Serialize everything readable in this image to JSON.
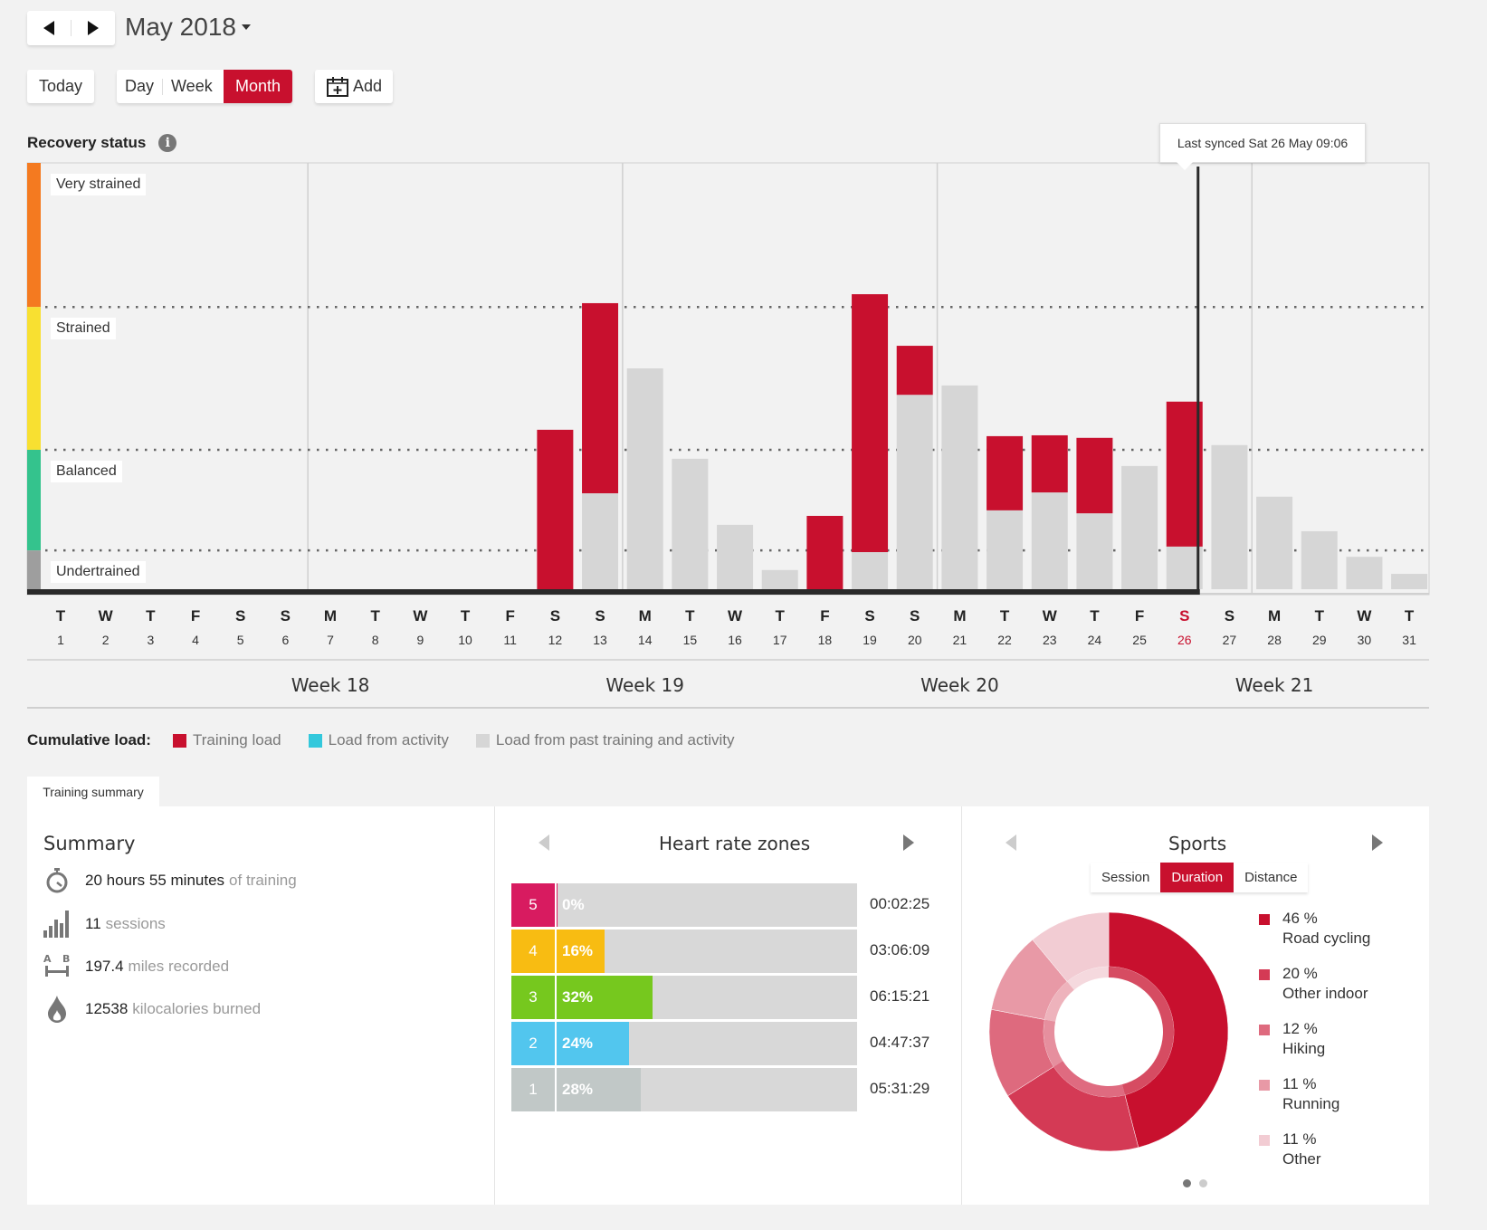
{
  "header": {
    "prev_label": "previous",
    "next_label": "next",
    "month_title": "May 2018",
    "today": "Today",
    "views": [
      "Day",
      "Week",
      "Month"
    ],
    "active_view": "Month",
    "add": "Add"
  },
  "recovery": {
    "title": "Recovery status",
    "tooltip": "Last synced Sat 26 May 09:06",
    "zones": [
      {
        "label": "Very strained",
        "color": "#f47a20"
      },
      {
        "label": "Strained",
        "color": "#f8e031"
      },
      {
        "label": "Balanced",
        "color": "#34c38d"
      },
      {
        "label": "Undertrained",
        "color": "#9e9e9e"
      }
    ]
  },
  "chart_data": {
    "type": "bar",
    "title": "Recovery status",
    "stacked": true,
    "ylim": [
      0,
      100
    ],
    "thresholds": {
      "undertrained_balanced": 9.1,
      "balanced_strained": 32.7,
      "strained_very_strained": 66.2
    },
    "categories": [
      "1",
      "2",
      "3",
      "4",
      "5",
      "6",
      "7",
      "8",
      "9",
      "10",
      "11",
      "12",
      "13",
      "14",
      "15",
      "16",
      "17",
      "18",
      "19",
      "20",
      "21",
      "22",
      "23",
      "24",
      "25",
      "26",
      "27",
      "28",
      "29",
      "30",
      "31"
    ],
    "weekdays": [
      "T",
      "W",
      "T",
      "F",
      "S",
      "S",
      "M",
      "T",
      "W",
      "T",
      "F",
      "S",
      "S",
      "M",
      "T",
      "W",
      "T",
      "F",
      "S",
      "S",
      "M",
      "T",
      "W",
      "T",
      "F",
      "S",
      "S",
      "M",
      "T",
      "W",
      "T"
    ],
    "highlight_day": "26",
    "synced_day": "26",
    "series": [
      {
        "name": "Load from past training and activity",
        "color": "#d6d6d6",
        "values": [
          0,
          0,
          0,
          0,
          0,
          0,
          0,
          0,
          0,
          0,
          0,
          0,
          22.5,
          51.8,
          30.6,
          15.1,
          4.5,
          0,
          8.7,
          45.6,
          47.8,
          18.5,
          22.7,
          17.8,
          28.9,
          10.0,
          33.8,
          21.7,
          13.6,
          7.6,
          3.6
        ]
      },
      {
        "name": "Training load",
        "color": "#c8102e",
        "values": [
          0,
          0,
          0,
          0,
          0,
          0,
          0,
          0,
          0,
          0,
          0,
          37.4,
          44.6,
          0,
          0,
          0,
          0,
          17.2,
          60.5,
          11.5,
          0,
          17.4,
          13.4,
          17.7,
          0,
          34.0,
          0,
          0,
          0,
          0,
          0
        ]
      }
    ],
    "weeks": [
      "Week 18",
      "Week 19",
      "Week 20",
      "Week 21"
    ]
  },
  "legend": {
    "title": "Cumulative load:",
    "items": [
      {
        "label": "Training load",
        "color": "#c8102e"
      },
      {
        "label": "Load from activity",
        "color": "#33c8dc"
      },
      {
        "label": "Load from past training and activity",
        "color": "#d6d6d6"
      }
    ]
  },
  "tab": "Training summary",
  "summary": {
    "title": "Summary",
    "rows": [
      {
        "icon": "stopwatch-icon",
        "value": "20 hours 55 minutes",
        "suffix": "of training"
      },
      {
        "icon": "bar-chart-icon",
        "value": "11",
        "suffix": "sessions"
      },
      {
        "icon": "distance-ab-icon",
        "value": "197.4",
        "suffix": "miles recorded"
      },
      {
        "icon": "flame-icon",
        "value": "12538",
        "suffix": "kilocalories burned"
      }
    ]
  },
  "heart_rate": {
    "title": "Heart rate zones",
    "zones": [
      {
        "zone": "5",
        "percent": 0,
        "label": "0%",
        "time": "00:02:25",
        "color": "#d81b60"
      },
      {
        "zone": "4",
        "percent": 16,
        "label": "16%",
        "time": "03:06:09",
        "color": "#f8bc12"
      },
      {
        "zone": "3",
        "percent": 32,
        "label": "32%",
        "time": "06:15:21",
        "color": "#76c81e"
      },
      {
        "zone": "2",
        "percent": 24,
        "label": "24%",
        "time": "04:47:37",
        "color": "#52c6ee"
      },
      {
        "zone": "1",
        "percent": 28,
        "label": "28%",
        "time": "05:31:29",
        "color": "#c1c8c7"
      }
    ]
  },
  "sports": {
    "title": "Sports",
    "tabs": [
      "Session",
      "Duration",
      "Distance"
    ],
    "active_tab": "Duration",
    "items": [
      {
        "percent": 46,
        "label": "46 %",
        "name": "Road cycling",
        "color": "#c8102e"
      },
      {
        "percent": 20,
        "label": "20 %",
        "name": "Other indoor",
        "color": "#d43a55"
      },
      {
        "percent": 12,
        "label": "12 %",
        "name": "Hiking",
        "color": "#de6a7e"
      },
      {
        "percent": 11,
        "label": "11 %",
        "name": "Running",
        "color": "#e899a6"
      },
      {
        "percent": 11,
        "label": "11 %",
        "name": "Other",
        "color": "#f2ccd3"
      }
    ],
    "page": 1,
    "pages": 2
  }
}
